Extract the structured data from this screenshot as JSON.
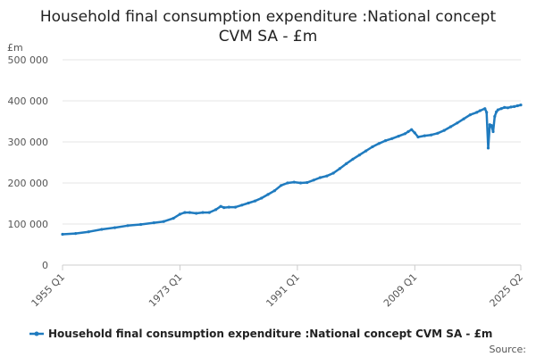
{
  "chart_data": {
    "type": "line",
    "title_lines": [
      "Household final consumption expenditure :National concept",
      "CVM SA - £m"
    ],
    "ylabel": "£m",
    "ylim": [
      0,
      500000
    ],
    "yticks": [
      {
        "value": 0,
        "label": "0"
      },
      {
        "value": 100000,
        "label": "100 000"
      },
      {
        "value": 200000,
        "label": "200 000"
      },
      {
        "value": 300000,
        "label": "300 000"
      },
      {
        "value": 400000,
        "label": "400 000"
      },
      {
        "value": 500000,
        "label": "500 000"
      }
    ],
    "xlim": [
      1955.0,
      2025.25
    ],
    "xticks": [
      {
        "value": 1955.0,
        "label": "1955 Q1"
      },
      {
        "value": 1973.0,
        "label": "1973 Q1"
      },
      {
        "value": 1991.0,
        "label": "1991 Q1"
      },
      {
        "value": 2009.0,
        "label": "2009 Q1"
      },
      {
        "value": 2025.25,
        "label": "2025 Q2"
      }
    ],
    "grid": true,
    "legend_position": "bottom",
    "series": [
      {
        "name": "Household final consumption expenditure :National concept CVM SA - £m",
        "color": "#1f7bbf",
        "points": [
          [
            1955.0,
            75000
          ],
          [
            1957.0,
            77000
          ],
          [
            1959.0,
            81000
          ],
          [
            1961.0,
            87000
          ],
          [
            1963.0,
            91000
          ],
          [
            1965.0,
            96000
          ],
          [
            1967.0,
            99000
          ],
          [
            1969.0,
            103000
          ],
          [
            1970.5,
            106000
          ],
          [
            1972.0,
            114000
          ],
          [
            1973.0,
            124000
          ],
          [
            1973.75,
            128000
          ],
          [
            1974.5,
            128000
          ],
          [
            1975.5,
            126000
          ],
          [
            1976.5,
            128000
          ],
          [
            1977.5,
            128000
          ],
          [
            1978.5,
            135000
          ],
          [
            1979.25,
            143000
          ],
          [
            1979.75,
            140000
          ],
          [
            1980.5,
            141000
          ],
          [
            1981.5,
            141000
          ],
          [
            1982.5,
            146000
          ],
          [
            1983.5,
            151000
          ],
          [
            1984.5,
            156000
          ],
          [
            1985.5,
            163000
          ],
          [
            1986.5,
            172000
          ],
          [
            1987.5,
            181000
          ],
          [
            1988.5,
            194000
          ],
          [
            1989.5,
            200000
          ],
          [
            1990.5,
            202000
          ],
          [
            1991.5,
            200000
          ],
          [
            1992.5,
            201000
          ],
          [
            1993.5,
            207000
          ],
          [
            1994.5,
            213000
          ],
          [
            1995.5,
            217000
          ],
          [
            1996.5,
            224000
          ],
          [
            1997.5,
            235000
          ],
          [
            1998.5,
            247000
          ],
          [
            1999.5,
            258000
          ],
          [
            2000.5,
            268000
          ],
          [
            2001.5,
            278000
          ],
          [
            2002.5,
            288000
          ],
          [
            2003.5,
            296000
          ],
          [
            2004.5,
            303000
          ],
          [
            2005.5,
            308000
          ],
          [
            2006.5,
            314000
          ],
          [
            2007.5,
            320000
          ],
          [
            2008.0,
            325000
          ],
          [
            2008.5,
            330000
          ],
          [
            2009.0,
            322000
          ],
          [
            2009.5,
            312000
          ],
          [
            2010.5,
            315000
          ],
          [
            2011.5,
            317000
          ],
          [
            2012.5,
            321000
          ],
          [
            2013.5,
            328000
          ],
          [
            2014.5,
            337000
          ],
          [
            2015.5,
            346000
          ],
          [
            2016.5,
            356000
          ],
          [
            2017.5,
            366000
          ],
          [
            2018.5,
            372000
          ],
          [
            2019.0,
            376000
          ],
          [
            2019.75,
            381000
          ],
          [
            2020.0,
            372000
          ],
          [
            2020.25,
            285000
          ],
          [
            2020.5,
            342000
          ],
          [
            2020.75,
            340000
          ],
          [
            2021.0,
            325000
          ],
          [
            2021.25,
            362000
          ],
          [
            2021.5,
            373000
          ],
          [
            2021.75,
            378000
          ],
          [
            2022.25,
            381000
          ],
          [
            2022.75,
            384000
          ],
          [
            2023.25,
            383000
          ],
          [
            2023.75,
            385000
          ],
          [
            2024.25,
            386000
          ],
          [
            2024.75,
            388000
          ],
          [
            2025.25,
            390000
          ]
        ]
      }
    ],
    "source_label": "Source:"
  }
}
